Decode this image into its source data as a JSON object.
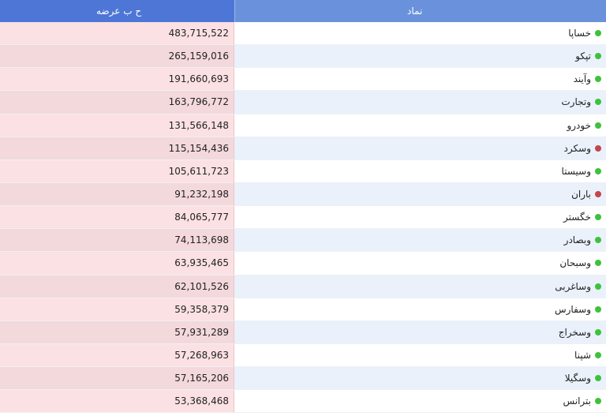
{
  "header": {
    "value_label": "ح ب عرضه",
    "symbol_label": "نماد"
  },
  "colors": {
    "up": "#3cc23c",
    "down": "#c4464b"
  },
  "rows": [
    {
      "symbol": "خساپا",
      "value": "483,715,522",
      "status": "up",
      "icon": "green-dot-icon"
    },
    {
      "symbol": "تپکو",
      "value": "265,159,016",
      "status": "up",
      "icon": "green-dot-icon"
    },
    {
      "symbol": "وآیند",
      "value": "191,660,693",
      "status": "up",
      "icon": "green-dot-icon"
    },
    {
      "symbol": "وتجارت",
      "value": "163,796,772",
      "status": "up",
      "icon": "green-dot-icon"
    },
    {
      "symbol": "خودرو",
      "value": "131,566,148",
      "status": "up",
      "icon": "green-dot-icon"
    },
    {
      "symbol": "وسکرد",
      "value": "115,154,436",
      "status": "down",
      "icon": "red-dot-icon"
    },
    {
      "symbol": "وسیستا",
      "value": "105,611,723",
      "status": "up",
      "icon": "green-dot-icon"
    },
    {
      "symbol": "باران",
      "value": "91,232,198",
      "status": "down",
      "icon": "red-dot-icon"
    },
    {
      "symbol": "خگستر",
      "value": "84,065,777",
      "status": "up",
      "icon": "green-dot-icon"
    },
    {
      "symbol": "وبصادر",
      "value": "74,113,698",
      "status": "up",
      "icon": "green-dot-icon"
    },
    {
      "symbol": "وسبحان",
      "value": "63,935,465",
      "status": "up",
      "icon": "green-dot-icon"
    },
    {
      "symbol": "وساغربی",
      "value": "62,101,526",
      "status": "up",
      "icon": "green-dot-icon"
    },
    {
      "symbol": "وسفارس",
      "value": "59,358,379",
      "status": "up",
      "icon": "green-dot-icon"
    },
    {
      "symbol": "وسخراج",
      "value": "57,931,289",
      "status": "up",
      "icon": "green-dot-icon"
    },
    {
      "symbol": "شپنا",
      "value": "57,268,963",
      "status": "up",
      "icon": "green-dot-icon"
    },
    {
      "symbol": "وسگیلا",
      "value": "57,165,206",
      "status": "up",
      "icon": "green-dot-icon"
    },
    {
      "symbol": "بترانس",
      "value": "53,368,468",
      "status": "up",
      "icon": "green-dot-icon"
    }
  ]
}
